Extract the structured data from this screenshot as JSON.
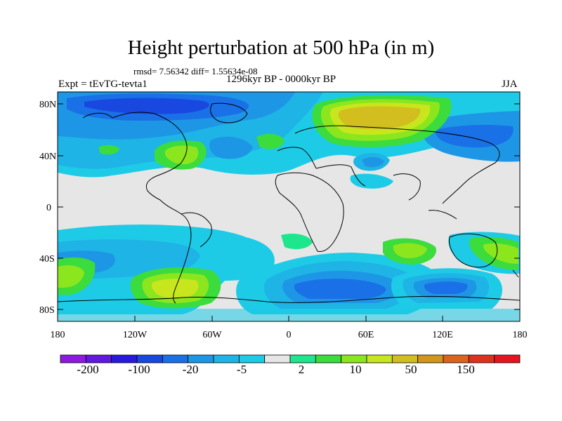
{
  "title": "Height perturbation at 500 hPa (in m)",
  "stats": "rmsd= 7.56342 diff= 1.55634e-08",
  "period": "1296kyr BP - 0000kyr BP",
  "experiment": "Expt = tEvTG-tevta1",
  "season": "JJA",
  "map": {
    "projection": "cylindrical equidistant",
    "lat_ticks": [
      "80N",
      "40N",
      "0",
      "40S",
      "80S"
    ],
    "lon_ticks": [
      "180",
      "120W",
      "60W",
      "0",
      "60E",
      "120E",
      "180"
    ]
  },
  "colorbar": {
    "colors": [
      "#8c1ae0",
      "#6218e0",
      "#2818e0",
      "#1848e0",
      "#1a70e6",
      "#1e96e6",
      "#1eb4e6",
      "#1ecbe6",
      "#e6e6e6",
      "#1ee68c",
      "#3cdc3c",
      "#8ce61e",
      "#c8e61e",
      "#d2be1e",
      "#d2961e",
      "#dc641e",
      "#dc321e",
      "#e6141e"
    ],
    "labels": [
      "-200",
      "-100",
      "-20",
      "-5",
      "2",
      "10",
      "50",
      "150"
    ]
  }
}
